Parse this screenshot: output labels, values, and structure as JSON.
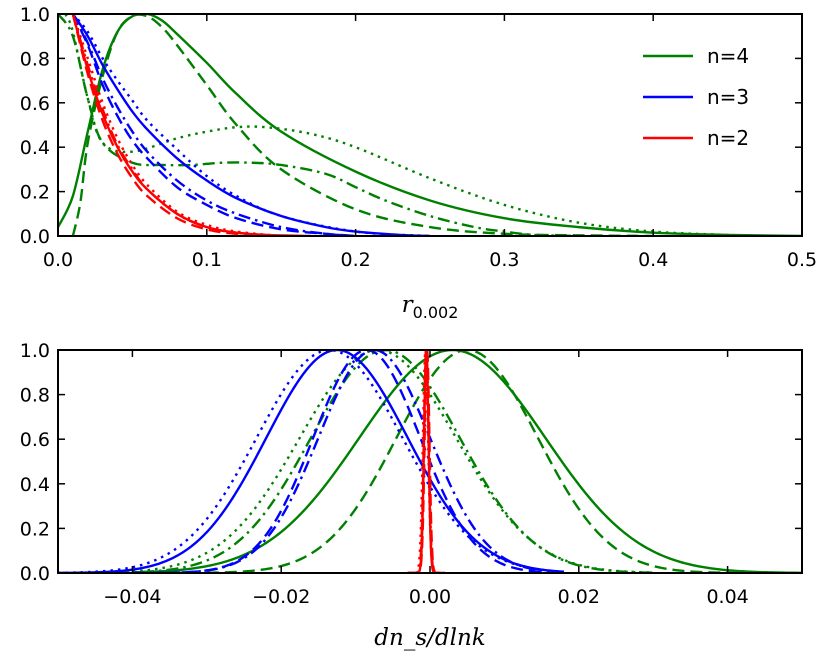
{
  "chart_data": [
    {
      "type": "line",
      "panel": "top",
      "xlabel": "r",
      "xlabel_sub": "0.002",
      "ylabel": "",
      "xlim": [
        0,
        0.5
      ],
      "ylim": [
        0,
        1.0
      ],
      "xticks": [
        0.0,
        0.1,
        0.2,
        0.3,
        0.4,
        0.5
      ],
      "xtick_labels": [
        "0.0",
        "0.1",
        "0.2",
        "0.3",
        "0.4",
        "0.5"
      ],
      "yticks": [
        0.0,
        0.2,
        0.4,
        0.6,
        0.8,
        1.0
      ],
      "ytick_labels": [
        "0.0",
        "0.2",
        "0.4",
        "0.6",
        "0.8",
        "1.0"
      ],
      "legend": {
        "placement": "top-right",
        "entries": [
          {
            "label": "n=4",
            "color": "#008000"
          },
          {
            "label": "n=3",
            "color": "#0000ff"
          },
          {
            "label": "n=2",
            "color": "#ff0000"
          }
        ]
      },
      "series": [
        {
          "name": "n=4 solid",
          "color": "#008000",
          "style": "solid",
          "x": [
            0.0,
            0.01,
            0.02,
            0.03,
            0.04,
            0.05,
            0.06,
            0.07,
            0.08,
            0.1,
            0.12,
            0.15,
            0.2,
            0.25,
            0.3,
            0.35,
            0.4,
            0.45,
            0.5
          ],
          "y": [
            0.04,
            0.18,
            0.47,
            0.75,
            0.92,
            0.99,
            1.0,
            0.97,
            0.91,
            0.78,
            0.64,
            0.47,
            0.29,
            0.16,
            0.08,
            0.04,
            0.015,
            0.005,
            0.0
          ]
        },
        {
          "name": "n=4 dashed",
          "color": "#008000",
          "style": "dashed",
          "x": [
            0.01,
            0.015,
            0.02,
            0.03,
            0.04,
            0.05,
            0.06,
            0.07,
            0.08,
            0.1,
            0.12,
            0.15,
            0.2,
            0.25,
            0.3,
            0.35,
            0.4
          ],
          "y": [
            0.0,
            0.15,
            0.42,
            0.72,
            0.92,
            0.99,
            0.99,
            0.94,
            0.86,
            0.68,
            0.5,
            0.3,
            0.12,
            0.04,
            0.01,
            0.003,
            0.0
          ]
        },
        {
          "name": "n=4 dotted",
          "color": "#008000",
          "style": "dotted",
          "x": [
            0.005,
            0.01,
            0.02,
            0.03,
            0.05,
            0.08,
            0.1,
            0.12,
            0.14,
            0.17,
            0.2,
            0.25,
            0.3,
            0.35,
            0.4,
            0.45,
            0.48
          ],
          "y": [
            1.0,
            0.92,
            0.62,
            0.42,
            0.38,
            0.44,
            0.47,
            0.49,
            0.49,
            0.46,
            0.4,
            0.26,
            0.14,
            0.06,
            0.02,
            0.005,
            0.0
          ]
        },
        {
          "name": "n=4 dash-dot",
          "color": "#008000",
          "style": "dashdot",
          "x": [
            0.0,
            0.01,
            0.02,
            0.03,
            0.05,
            0.07,
            0.09,
            0.11,
            0.13,
            0.15,
            0.18,
            0.2,
            0.22,
            0.25,
            0.28,
            0.3,
            0.32,
            0.35
          ],
          "y": [
            1.0,
            0.9,
            0.62,
            0.42,
            0.33,
            0.32,
            0.32,
            0.33,
            0.33,
            0.32,
            0.28,
            0.22,
            0.16,
            0.09,
            0.04,
            0.02,
            0.005,
            0.0
          ]
        },
        {
          "name": "n=3 solid",
          "color": "#0000ff",
          "style": "solid",
          "x": [
            0.01,
            0.02,
            0.03,
            0.04,
            0.05,
            0.06,
            0.08,
            0.1,
            0.12,
            0.15,
            0.18,
            0.2,
            0.23,
            0.25
          ],
          "y": [
            1.0,
            0.9,
            0.77,
            0.66,
            0.56,
            0.48,
            0.35,
            0.25,
            0.17,
            0.09,
            0.04,
            0.02,
            0.005,
            0.0
          ]
        },
        {
          "name": "n=3 dashed",
          "color": "#0000ff",
          "style": "dashed",
          "x": [
            0.01,
            0.02,
            0.03,
            0.04,
            0.05,
            0.06,
            0.08,
            0.1,
            0.12,
            0.15,
            0.18,
            0.2
          ],
          "y": [
            1.0,
            0.86,
            0.68,
            0.54,
            0.43,
            0.35,
            0.22,
            0.14,
            0.08,
            0.03,
            0.01,
            0.0
          ]
        },
        {
          "name": "n=3 dotted",
          "color": "#0000ff",
          "style": "dotted",
          "x": [
            0.01,
            0.02,
            0.03,
            0.04,
            0.05,
            0.06,
            0.08,
            0.1,
            0.12,
            0.15,
            0.2,
            0.25
          ],
          "y": [
            1.0,
            0.92,
            0.8,
            0.7,
            0.61,
            0.52,
            0.39,
            0.27,
            0.18,
            0.09,
            0.02,
            0.0
          ]
        },
        {
          "name": "n=3 dash-dot",
          "color": "#0000ff",
          "style": "dashdot",
          "x": [
            0.01,
            0.02,
            0.03,
            0.04,
            0.05,
            0.06,
            0.08,
            0.1,
            0.12,
            0.15,
            0.18,
            0.2
          ],
          "y": [
            1.0,
            0.87,
            0.71,
            0.58,
            0.47,
            0.38,
            0.25,
            0.16,
            0.1,
            0.04,
            0.01,
            0.0
          ]
        },
        {
          "name": "n=2 solid",
          "color": "#ff0000",
          "style": "solid",
          "x": [
            0.01,
            0.02,
            0.03,
            0.04,
            0.05,
            0.06,
            0.08,
            0.1,
            0.12,
            0.14,
            0.17
          ],
          "y": [
            1.0,
            0.75,
            0.55,
            0.4,
            0.29,
            0.21,
            0.1,
            0.04,
            0.015,
            0.005,
            0.0
          ]
        },
        {
          "name": "n=2 dashed",
          "color": "#ff0000",
          "style": "dashed",
          "x": [
            0.01,
            0.02,
            0.03,
            0.04,
            0.05,
            0.06,
            0.08,
            0.1,
            0.12,
            0.15
          ],
          "y": [
            1.0,
            0.73,
            0.52,
            0.37,
            0.26,
            0.18,
            0.08,
            0.03,
            0.01,
            0.0
          ]
        },
        {
          "name": "n=2 dotted",
          "color": "#ff0000",
          "style": "dotted",
          "x": [
            0.01,
            0.02,
            0.03,
            0.04,
            0.05,
            0.06,
            0.08,
            0.1,
            0.12,
            0.15
          ],
          "y": [
            1.0,
            0.8,
            0.6,
            0.44,
            0.32,
            0.23,
            0.11,
            0.05,
            0.02,
            0.0
          ]
        },
        {
          "name": "n=2 dash-dot",
          "color": "#ff0000",
          "style": "dashdot",
          "x": [
            0.01,
            0.02,
            0.03,
            0.04,
            0.05,
            0.06,
            0.08,
            0.1,
            0.12,
            0.15
          ],
          "y": [
            1.0,
            0.77,
            0.57,
            0.41,
            0.3,
            0.21,
            0.1,
            0.04,
            0.015,
            0.0
          ]
        }
      ]
    },
    {
      "type": "line",
      "panel": "bottom",
      "xlabel": "dn_s/dlnk",
      "ylabel": "",
      "xlim": [
        -0.05,
        0.05
      ],
      "ylim": [
        0,
        1.0
      ],
      "xticks": [
        -0.04,
        -0.02,
        0.0,
        0.02,
        0.04
      ],
      "xtick_labels": [
        "−0.04",
        "−0.02",
        "0.00",
        "0.02",
        "0.04"
      ],
      "yticks": [
        0.0,
        0.2,
        0.4,
        0.6,
        0.8,
        1.0
      ],
      "ytick_labels": [
        "0.0",
        "0.2",
        "0.4",
        "0.6",
        "0.8",
        "1.0"
      ],
      "series": [
        {
          "name": "n=4 solid",
          "color": "#008000",
          "style": "solid",
          "gaussian": {
            "mu": 0.003,
            "sigma": 0.0125,
            "x_from": -0.04,
            "x_to": 0.05
          }
        },
        {
          "name": "n=4 dashed",
          "color": "#008000",
          "style": "dashed",
          "gaussian": {
            "mu": 0.005,
            "sigma": 0.0095,
            "x_from": -0.03,
            "x_to": 0.045
          }
        },
        {
          "name": "n=4 dotted",
          "color": "#008000",
          "style": "dotted",
          "gaussian": {
            "mu": -0.007,
            "sigma": 0.0105,
            "x_from": -0.045,
            "x_to": 0.03
          }
        },
        {
          "name": "n=4 dash-dot",
          "color": "#008000",
          "style": "dashdot",
          "gaussian": {
            "mu": -0.006,
            "sigma": 0.01,
            "x_from": -0.042,
            "x_to": 0.03
          }
        },
        {
          "name": "n=3 solid",
          "color": "#0000ff",
          "style": "solid",
          "gaussian": {
            "mu": -0.0125,
            "sigma": 0.0095,
            "x_from": -0.05,
            "x_to": 0.018
          }
        },
        {
          "name": "n=3 dashed",
          "color": "#0000ff",
          "style": "dashed",
          "gaussian": {
            "mu": -0.0085,
            "sigma": 0.0072,
            "x_from": -0.04,
            "x_to": 0.016
          }
        },
        {
          "name": "n=3 dotted",
          "color": "#0000ff",
          "style": "dotted",
          "gaussian": {
            "mu": -0.0135,
            "sigma": 0.0098,
            "x_from": -0.05,
            "x_to": 0.018
          }
        },
        {
          "name": "n=3 dash-dot",
          "color": "#0000ff",
          "style": "dashdot",
          "gaussian": {
            "mu": -0.0075,
            "sigma": 0.0075,
            "x_from": -0.04,
            "x_to": 0.016
          }
        },
        {
          "name": "n=2 solid",
          "color": "#ff0000",
          "style": "solid",
          "gaussian": {
            "mu": -0.0005,
            "sigma": 0.0003,
            "x_from": -0.003,
            "x_to": 0.002
          }
        },
        {
          "name": "n=2 dashed",
          "color": "#ff0000",
          "style": "dashed",
          "gaussian": {
            "mu": -0.0004,
            "sigma": 0.00032,
            "x_from": -0.003,
            "x_to": 0.002
          }
        },
        {
          "name": "n=2 dotted",
          "color": "#ff0000",
          "style": "dotted",
          "gaussian": {
            "mu": -0.0006,
            "sigma": 0.00035,
            "x_from": -0.003,
            "x_to": 0.002
          }
        },
        {
          "name": "n=2 dash-dot",
          "color": "#ff0000",
          "style": "dashdot",
          "gaussian": {
            "mu": -0.0005,
            "sigma": 0.00033,
            "x_from": -0.003,
            "x_to": 0.002
          }
        }
      ]
    }
  ]
}
